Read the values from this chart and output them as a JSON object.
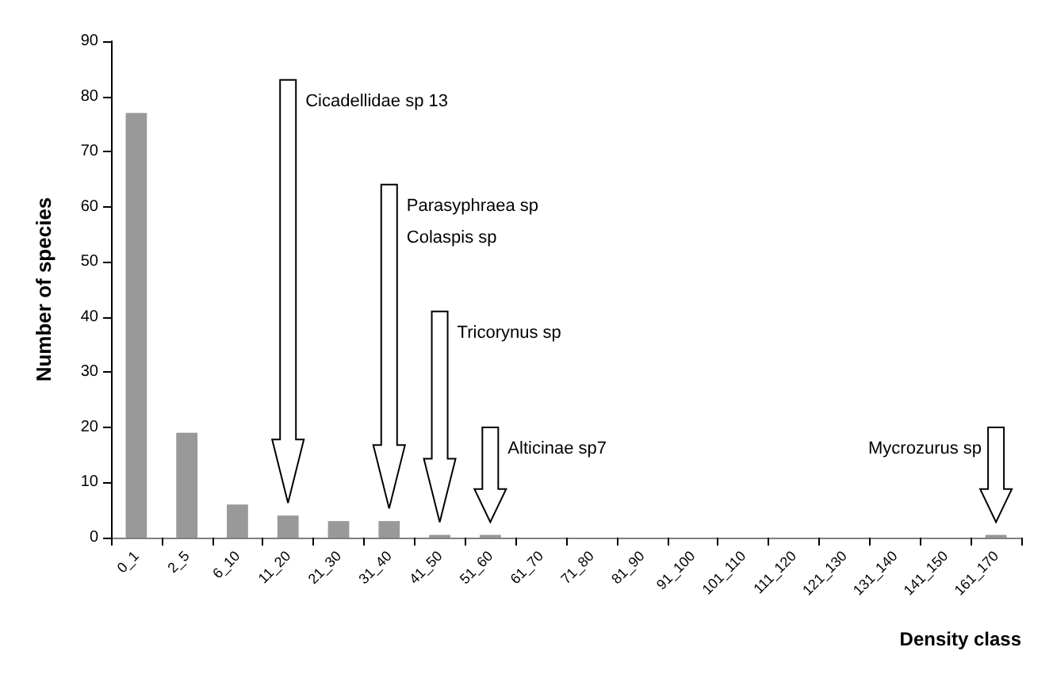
{
  "chart_data": {
    "type": "bar",
    "xlabel": "Density class",
    "ylabel": "Number of species",
    "categories": [
      "0_1",
      "2_5",
      "6_10",
      "11_20",
      "21_30",
      "31_40",
      "41_50",
      "51_60",
      "61_70",
      "71_80",
      "81_90",
      "91_100",
      "101_110",
      "111_120",
      "121_130",
      "131_140",
      "141_150",
      "161_170"
    ],
    "values": [
      77,
      19,
      6,
      4,
      3,
      3,
      0.5,
      0.5,
      0,
      0,
      0,
      0,
      0,
      0,
      0,
      0,
      0,
      0.5
    ],
    "color": "#999999",
    "ylim": [
      0,
      90
    ],
    "yticks": [
      0,
      10,
      20,
      30,
      40,
      50,
      60,
      70,
      80,
      90
    ],
    "grid": false,
    "annotations": [
      "Cicadellidae sp 13",
      "Parasyphraea sp",
      "Colaspis sp",
      "Tricorynus sp",
      "Alticinae sp7",
      "Mycrozurus sp"
    ]
  }
}
